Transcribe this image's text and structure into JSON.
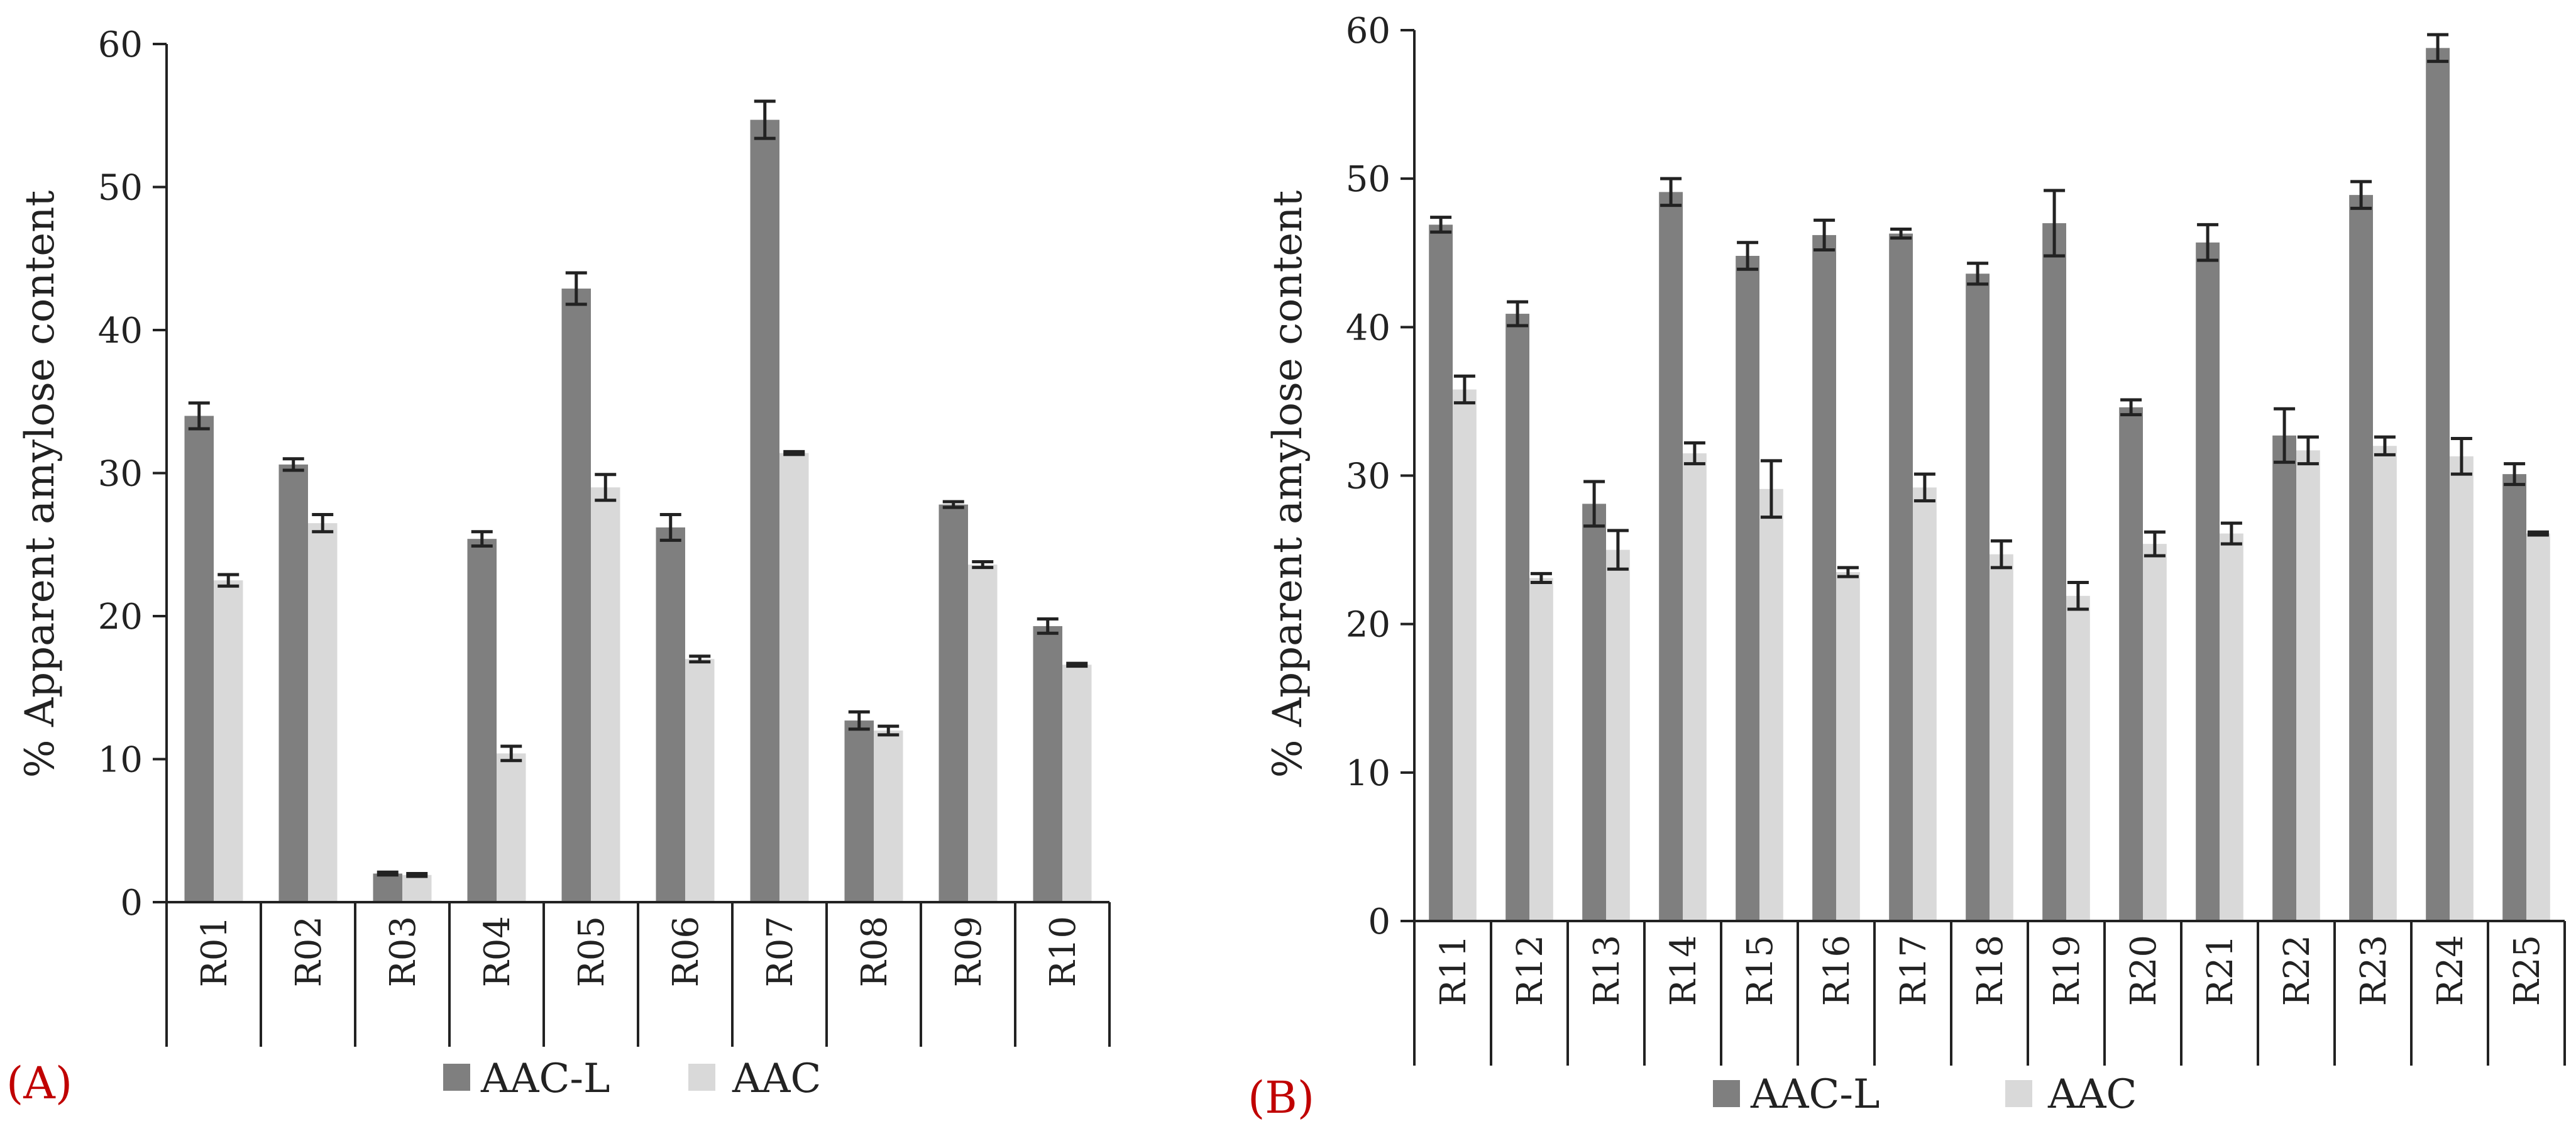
{
  "colors": {
    "aac_l": "#7f7f7f",
    "aac": "#d9d9d9",
    "axis": "#222222",
    "panel_label": "#c00000"
  },
  "chart_data": [
    {
      "type": "bar",
      "panel_label": "(A)",
      "ylabel": "% Apparent amylose content",
      "ylim": [
        0,
        60
      ],
      "yticks": [
        0,
        10,
        20,
        30,
        40,
        50,
        60
      ],
      "categories": [
        "R01",
        "R02",
        "R03",
        "R04",
        "R05",
        "R06",
        "R07",
        "R08",
        "R09",
        "R10"
      ],
      "series": [
        {
          "name": "AAC-L",
          "values": [
            34.0,
            30.6,
            2.0,
            25.4,
            42.9,
            26.2,
            54.7,
            12.7,
            27.8,
            19.3
          ],
          "errors": [
            0.9,
            0.4,
            0.1,
            0.5,
            1.1,
            0.9,
            1.3,
            0.6,
            0.2,
            0.5
          ]
        },
        {
          "name": "AAC",
          "values": [
            22.5,
            26.5,
            1.9,
            10.4,
            29.0,
            17.0,
            31.4,
            12.0,
            23.6,
            16.6
          ],
          "errors": [
            0.4,
            0.6,
            0.1,
            0.5,
            0.9,
            0.2,
            0.1,
            0.3,
            0.2,
            0.1
          ]
        }
      ]
    },
    {
      "type": "bar",
      "panel_label": "(B)",
      "ylabel": "% Apparent amylose content",
      "ylim": [
        0,
        60
      ],
      "yticks": [
        0,
        10,
        20,
        30,
        40,
        50,
        60
      ],
      "categories": [
        "R11",
        "R12",
        "R13",
        "R14",
        "R15",
        "R16",
        "R17",
        "R18",
        "R19",
        "R20",
        "R21",
        "R22",
        "R23",
        "R24",
        "R25"
      ],
      "series": [
        {
          "name": "AAC-L",
          "values": [
            46.9,
            40.9,
            28.1,
            49.1,
            44.8,
            46.2,
            46.3,
            43.6,
            47.0,
            34.6,
            45.7,
            32.7,
            48.9,
            58.8,
            30.1
          ],
          "errors": [
            0.5,
            0.8,
            1.5,
            0.9,
            0.9,
            1.0,
            0.3,
            0.7,
            2.2,
            0.5,
            1.2,
            1.8,
            0.9,
            0.9,
            0.7
          ]
        },
        {
          "name": "AAC",
          "values": [
            35.8,
            23.1,
            25.0,
            31.5,
            29.1,
            23.5,
            29.2,
            24.7,
            21.9,
            25.4,
            26.1,
            31.7,
            32.0,
            31.3,
            26.1
          ],
          "errors": [
            0.9,
            0.3,
            1.3,
            0.7,
            1.9,
            0.3,
            0.9,
            0.9,
            0.9,
            0.8,
            0.7,
            0.9,
            0.6,
            1.2,
            0.1
          ]
        }
      ]
    }
  ]
}
